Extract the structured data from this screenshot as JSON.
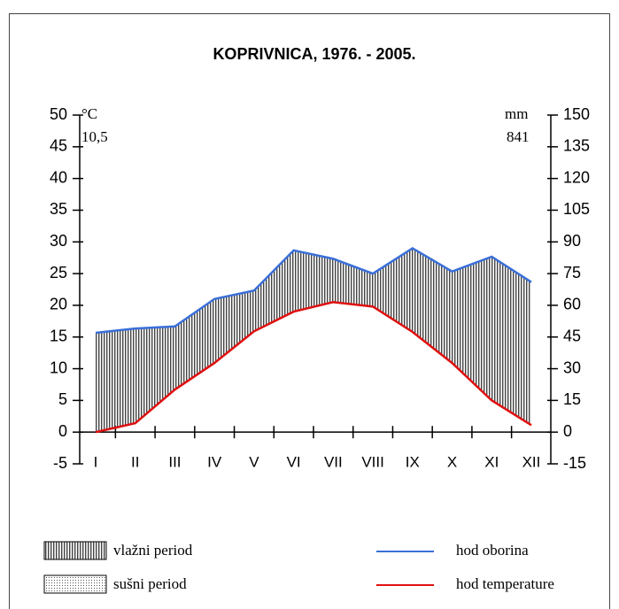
{
  "chart_data": {
    "type": "climate",
    "title": "KOPRIVNICA, 1976. - 2005.",
    "categories": [
      "I",
      "II",
      "III",
      "IV",
      "V",
      "VI",
      "VII",
      "VIII",
      "IX",
      "X",
      "XI",
      "XII"
    ],
    "series": [
      {
        "name": "hod oborina",
        "color": "#3a6fd8",
        "axis": "y2",
        "values": [
          47,
          49,
          50,
          63,
          67,
          86,
          82,
          75,
          87,
          76,
          83,
          71
        ]
      },
      {
        "name": "hod temperature",
        "color": "#e01010",
        "values": [
          0,
          1.4,
          6.7,
          10.9,
          15.9,
          19,
          20.5,
          19.8,
          15.8,
          10.9,
          5,
          1.1
        ]
      }
    ],
    "areas": [
      {
        "name": "vlažni period"
      },
      {
        "name": "sušni period"
      }
    ],
    "ylabel": "°C",
    "y2label": "mm",
    "annotations": [
      "10,5",
      "841"
    ],
    "ylim": [
      -5,
      50
    ],
    "yticks": [
      -5,
      0,
      5,
      10,
      15,
      20,
      25,
      30,
      35,
      40,
      45,
      50
    ],
    "y2lim": [
      -15,
      150
    ],
    "y2ticks": [
      -15,
      0,
      15,
      30,
      45,
      60,
      75,
      90,
      105,
      120,
      135,
      150
    ]
  }
}
